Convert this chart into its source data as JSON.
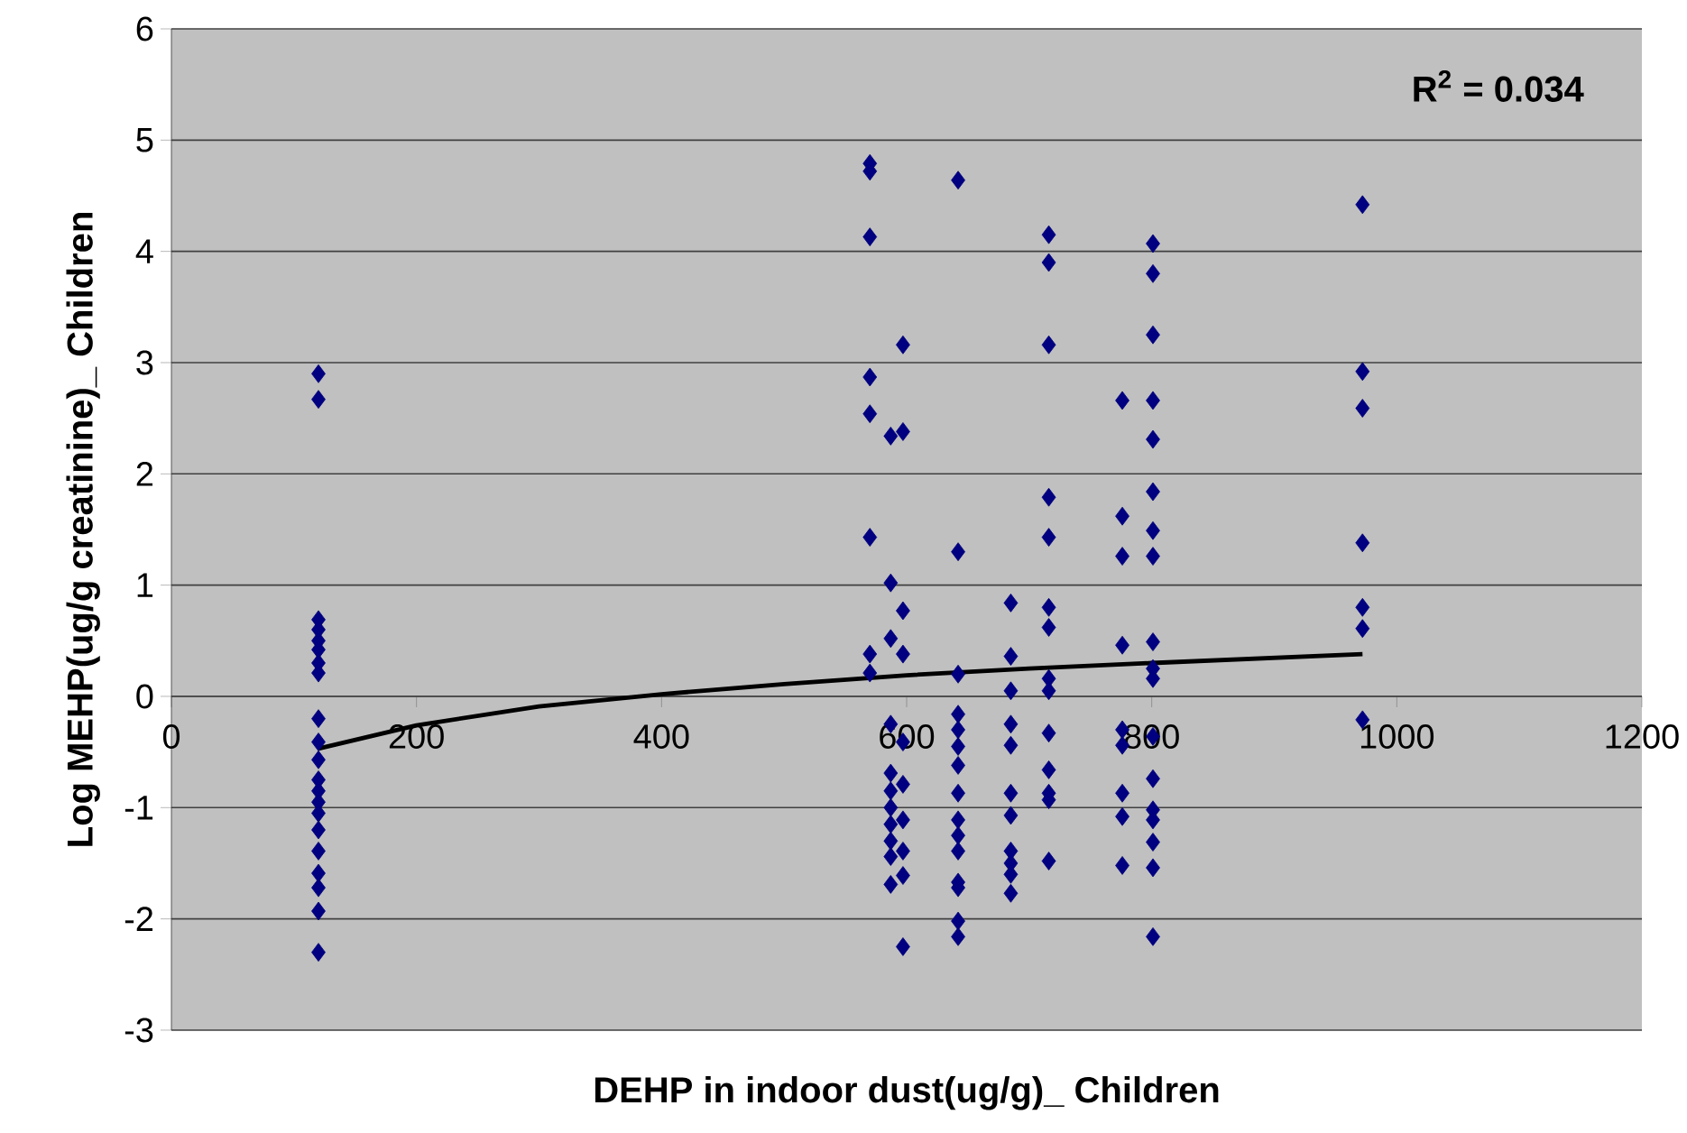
{
  "chart_data": {
    "type": "scatter",
    "xlabel": "DEHP in indoor dust(ug/g)_ Children",
    "ylabel": "Log MEHP(ug/g creatinine)_ Children",
    "annotations": [
      "**R$^{2}$ = 0.034**"
    ],
    "xlim": [
      0,
      1200
    ],
    "ylim": [
      -3,
      6
    ],
    "xticks": [
      0,
      200,
      400,
      600,
      800,
      1000,
      1200
    ],
    "yticks": [
      -3,
      -2,
      -1,
      0,
      1,
      2,
      3,
      4,
      5,
      6
    ],
    "grid": "y",
    "marker": "diamond",
    "series": [
      {
        "color": "#000080",
        "x": [
          120,
          120,
          120,
          120,
          120,
          120,
          120,
          120,
          120,
          120,
          120,
          120,
          120,
          120,
          120,
          120,
          120,
          120,
          120,
          120,
          120,
          570,
          570,
          570,
          570,
          570,
          570,
          570,
          570,
          587,
          587,
          587,
          587,
          587,
          587,
          587,
          587,
          587,
          587,
          587,
          597,
          597,
          597,
          597,
          597,
          597,
          597,
          597,
          597,
          597,
          642,
          642,
          642,
          642,
          642,
          642,
          642,
          642,
          642,
          642,
          642,
          642,
          642,
          642,
          642,
          685,
          685,
          685,
          685,
          685,
          685,
          685,
          685,
          685,
          685,
          685,
          716,
          716,
          716,
          716,
          716,
          716,
          716,
          716,
          716,
          716,
          716,
          716,
          716,
          716,
          776,
          776,
          776,
          776,
          776,
          776,
          776,
          776,
          776,
          801,
          801,
          801,
          801,
          801,
          801,
          801,
          801,
          801,
          801,
          801,
          801,
          801,
          801,
          801,
          801,
          801,
          801,
          972,
          972,
          972,
          972,
          972,
          972,
          972
        ],
        "values": [
          2.9,
          2.67,
          0.69,
          0.6,
          0.5,
          0.42,
          0.3,
          0.21,
          -0.2,
          -0.41,
          -0.57,
          -0.75,
          -0.85,
          -0.95,
          -1.05,
          -1.2,
          -1.39,
          -1.59,
          -1.72,
          -1.93,
          -2.3,
          4.79,
          4.72,
          4.13,
          2.87,
          2.54,
          1.43,
          0.38,
          0.21,
          2.34,
          1.02,
          0.52,
          -0.25,
          -0.69,
          -0.85,
          -1.0,
          -1.15,
          -1.3,
          -1.44,
          -1.69,
          3.16,
          2.38,
          0.77,
          0.38,
          -0.41,
          -0.79,
          -1.11,
          -1.39,
          -1.61,
          -2.25,
          4.64,
          1.3,
          0.2,
          -0.16,
          -0.3,
          -0.45,
          -0.62,
          -0.87,
          -1.11,
          -1.25,
          -1.39,
          -1.67,
          -1.72,
          -2.02,
          -2.16,
          0.84,
          0.36,
          0.05,
          -0.25,
          -0.44,
          -0.87,
          -1.07,
          -1.39,
          -1.5,
          -1.6,
          -1.77,
          4.15,
          3.9,
          3.16,
          1.79,
          1.43,
          0.8,
          0.62,
          0.16,
          0.05,
          -0.33,
          -0.66,
          -0.87,
          -0.93,
          -1.48,
          2.66,
          1.62,
          1.26,
          0.46,
          -0.3,
          -0.44,
          -0.87,
          -1.08,
          -1.52,
          4.07,
          3.8,
          3.25,
          2.66,
          2.31,
          1.84,
          1.49,
          1.26,
          0.49,
          0.25,
          0.16,
          -0.36,
          -0.74,
          -1.02,
          -1.11,
          -1.31,
          -1.54,
          -2.16,
          4.42,
          2.92,
          2.59,
          1.38,
          0.8,
          0.61,
          -0.21
        ]
      },
      {
        "type": "line",
        "marker": "none",
        "color": "#000000",
        "x": [
          120,
          200,
          300,
          400,
          500,
          600,
          700,
          800,
          972
        ],
        "values": [
          -0.47,
          -0.26,
          -0.09,
          0.02,
          0.11,
          0.19,
          0.25,
          0.3,
          0.38
        ]
      }
    ]
  }
}
